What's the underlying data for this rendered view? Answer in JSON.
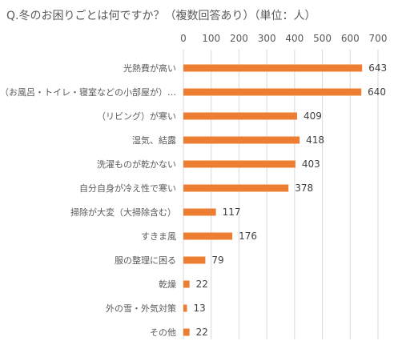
{
  "chart_data": {
    "type": "bar",
    "orientation": "horizontal",
    "title": "Q.冬のお困りごとは何ですか？（複数回答あり）（単位：人）",
    "categories": [
      "光熱費が高い",
      "（お風呂・トイレ・寝室などの小部屋が）…",
      "（リビング）が寒い",
      "湿気、結露",
      "洗濯ものが乾かない",
      "自分自身が冷え性で寒い",
      "掃除が大変（大掃除含む）",
      "すきま風",
      "服の整理に困る",
      "乾燥",
      "外の雪・外気対策",
      "その他"
    ],
    "values": [
      643,
      640,
      409,
      418,
      403,
      378,
      117,
      176,
      79,
      22,
      13,
      22
    ],
    "xlim": [
      0,
      700
    ],
    "xticks": [
      0,
      100,
      200,
      300,
      400,
      500,
      600,
      700
    ],
    "x_axis_position": "top",
    "grid": true,
    "legend": "none",
    "bar_color": "#ED7D31",
    "gridline_color": "#D9D9D9",
    "text_color": "#595959"
  }
}
